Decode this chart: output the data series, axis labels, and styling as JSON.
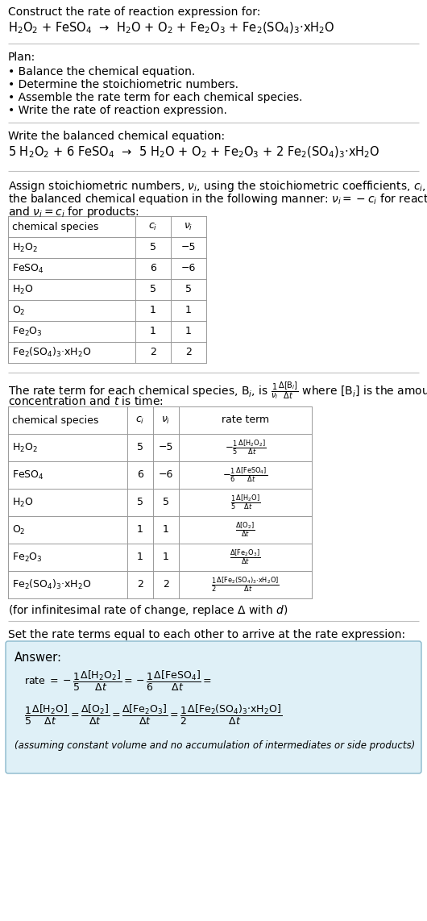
{
  "bg_color": "#ffffff",
  "title_line1": "Construct the rate of reaction expression for:",
  "reaction_unbalanced": "H$_2$O$_2$ + FeSO$_4$  →  H$_2$O + O$_2$ + Fe$_2$O$_3$ + Fe$_2$(SO$_4$)$_3$·xH$_2$O",
  "plan_header": "Plan:",
  "plan_items": [
    "• Balance the chemical equation.",
    "• Determine the stoichiometric numbers.",
    "• Assemble the rate term for each chemical species.",
    "• Write the rate of reaction expression."
  ],
  "balanced_header": "Write the balanced chemical equation:",
  "reaction_balanced": "5 H$_2$O$_2$ + 6 FeSO$_4$  →  5 H$_2$O + O$_2$ + Fe$_2$O$_3$ + 2 Fe$_2$(SO$_4$)$_3$·xH$_2$O",
  "assign_text1": "Assign stoichiometric numbers, $\\nu_i$, using the stoichiometric coefficients, $c_i$, from",
  "assign_text2": "the balanced chemical equation in the following manner: $\\nu_i = -c_i$ for reactants",
  "assign_text3": "and $\\nu_i = c_i$ for products:",
  "table1_headers": [
    "chemical species",
    "$c_i$",
    "$\\nu_i$"
  ],
  "table1_rows": [
    [
      "H$_2$O$_2$",
      "5",
      "−5"
    ],
    [
      "FeSO$_4$",
      "6",
      "−6"
    ],
    [
      "H$_2$O",
      "5",
      "5"
    ],
    [
      "O$_2$",
      "1",
      "1"
    ],
    [
      "Fe$_2$O$_3$",
      "1",
      "1"
    ],
    [
      "Fe$_2$(SO$_4$)$_3$·xH$_2$O",
      "2",
      "2"
    ]
  ],
  "rate_text1a": "The rate term for each chemical species, B",
  "rate_text1b": ", is $\\frac{1}{\\nu_i}\\frac{\\Delta[\\mathrm{B}_i]}{\\Delta t}$ where [B",
  "rate_text1c": "] is the amount",
  "rate_text2": "concentration and $t$ is time:",
  "table2_headers": [
    "chemical species",
    "$c_i$",
    "$\\nu_i$",
    "rate term"
  ],
  "table2_rows": [
    [
      "H$_2$O$_2$",
      "5",
      "−5",
      "$-\\frac{1}{5}\\frac{\\Delta[\\mathrm{H_2O_2}]}{\\Delta t}$"
    ],
    [
      "FeSO$_4$",
      "6",
      "−6",
      "$-\\frac{1}{6}\\frac{\\Delta[\\mathrm{FeSO_4}]}{\\Delta t}$"
    ],
    [
      "H$_2$O",
      "5",
      "5",
      "$\\frac{1}{5}\\frac{\\Delta[\\mathrm{H_2O}]}{\\Delta t}$"
    ],
    [
      "O$_2$",
      "1",
      "1",
      "$\\frac{\\Delta[\\mathrm{O_2}]}{\\Delta t}$"
    ],
    [
      "Fe$_2$O$_3$",
      "1",
      "1",
      "$\\frac{\\Delta[\\mathrm{Fe_2O_3}]}{\\Delta t}$"
    ],
    [
      "Fe$_2$(SO$_4$)$_3$·xH$_2$O",
      "2",
      "2",
      "$\\frac{1}{2}\\frac{\\Delta[\\mathrm{Fe_2(SO_4)_3{\\cdot}xH_2O}]}{\\Delta t}$"
    ]
  ],
  "infinitesimal_note": "(for infinitesimal rate of change, replace Δ with $d$)",
  "set_rate_text": "Set the rate terms equal to each other to arrive at the rate expression:",
  "answer_box_color": "#dff0f7",
  "answer_border_color": "#8ab8cc",
  "answer_label": "Answer:",
  "answer_note": "(assuming constant volume and no accumulation of intermediates or side products)"
}
